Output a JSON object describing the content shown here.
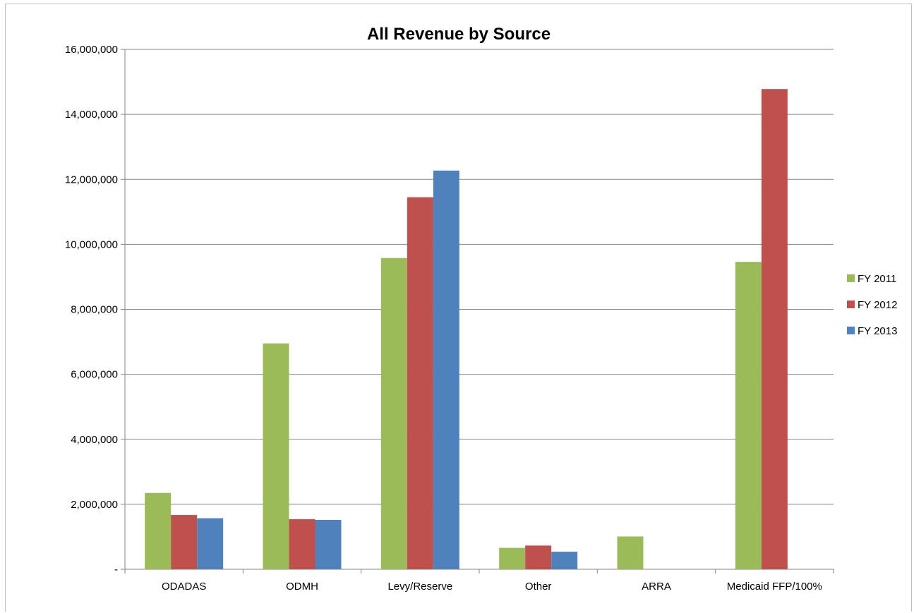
{
  "chart_data": {
    "type": "bar",
    "title": "All Revenue by Source",
    "xlabel": "",
    "ylabel": "",
    "ylim": [
      0,
      16000000
    ],
    "ytick_step": 2000000,
    "ytick_labels": [
      "-",
      "2,000,000",
      "4,000,000",
      "6,000,000",
      "8,000,000",
      "10,000,000",
      "12,000,000",
      "14,000,000",
      "16,000,000"
    ],
    "categories": [
      "ODADAS",
      "ODMH",
      "Levy/Reserve",
      "Other",
      "ARRA",
      "Medicaid FFP/100%"
    ],
    "series": [
      {
        "name": "FY 2011",
        "color": "#9bbb59",
        "values": [
          2350000,
          6950000,
          9580000,
          660000,
          1010000,
          9460000
        ]
      },
      {
        "name": "FY 2012",
        "color": "#c0504d",
        "values": [
          1670000,
          1540000,
          11450000,
          730000,
          0,
          14780000
        ]
      },
      {
        "name": "FY 2013",
        "color": "#4f81bd",
        "values": [
          1570000,
          1520000,
          12270000,
          540000,
          0,
          0
        ]
      }
    ],
    "grid": true,
    "legend_position": "right"
  }
}
